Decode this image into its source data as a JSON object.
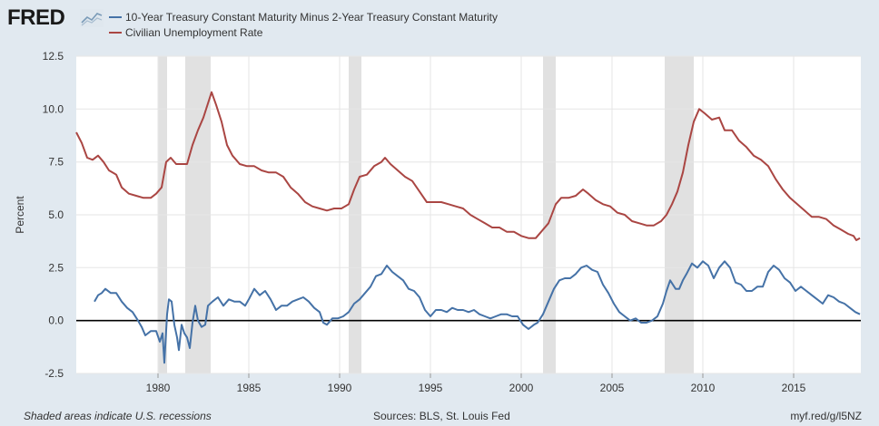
{
  "logo": {
    "text": "FRED"
  },
  "footer": {
    "note": "Shaded areas indicate U.S. recessions",
    "sources": "Sources: BLS, St. Louis Fed",
    "link": "myf.red/g/l5NZ"
  },
  "colors": {
    "background": "#e1e9f0",
    "plot_bg": "#ffffff",
    "spread": "#4572a7",
    "unemployment": "#aa4643",
    "recession": "#e1e1e1"
  },
  "chart_data": {
    "type": "line",
    "title": "",
    "xlabel": "",
    "ylabel": "Percent",
    "xlim": [
      1975.5,
      2018.7
    ],
    "ylim": [
      -2.5,
      12.5
    ],
    "yticks": [
      -2.5,
      0.0,
      2.5,
      5.0,
      7.5,
      10.0,
      12.5
    ],
    "ytick_labels": [
      "-2.5",
      "0.0",
      "2.5",
      "5.0",
      "7.5",
      "10.0",
      "12.5"
    ],
    "xticks": [
      1980,
      1985,
      1990,
      1995,
      2000,
      2005,
      2010,
      2015
    ],
    "xtick_labels": [
      "1980",
      "1985",
      "1990",
      "1995",
      "2000",
      "2005",
      "2010",
      "2015"
    ],
    "grid": true,
    "legend_position": "top-left",
    "recessions": [
      [
        1980.0,
        1980.5
      ],
      [
        1981.5,
        1982.9
      ],
      [
        1990.5,
        1991.2
      ],
      [
        2001.2,
        2001.9
      ],
      [
        2007.9,
        2009.5
      ]
    ],
    "series": [
      {
        "name": "10-Year Treasury Constant Maturity Minus 2-Year Treasury Constant Maturity",
        "color": "#4572a7",
        "points": [
          [
            1976.5,
            0.9
          ],
          [
            1976.7,
            1.2
          ],
          [
            1976.9,
            1.3
          ],
          [
            1977.1,
            1.5
          ],
          [
            1977.4,
            1.3
          ],
          [
            1977.7,
            1.3
          ],
          [
            1978.0,
            0.9
          ],
          [
            1978.3,
            0.6
          ],
          [
            1978.6,
            0.4
          ],
          [
            1978.9,
            0.0
          ],
          [
            1979.1,
            -0.3
          ],
          [
            1979.3,
            -0.7
          ],
          [
            1979.6,
            -0.5
          ],
          [
            1979.9,
            -0.5
          ],
          [
            1980.1,
            -1.0
          ],
          [
            1980.25,
            -0.6
          ],
          [
            1980.35,
            -2.0
          ],
          [
            1980.5,
            0.3
          ],
          [
            1980.6,
            1.0
          ],
          [
            1980.75,
            0.9
          ],
          [
            1980.9,
            -0.2
          ],
          [
            1981.05,
            -0.8
          ],
          [
            1981.15,
            -1.4
          ],
          [
            1981.3,
            -0.2
          ],
          [
            1981.45,
            -0.6
          ],
          [
            1981.6,
            -0.8
          ],
          [
            1981.75,
            -1.3
          ],
          [
            1981.9,
            -0.1
          ],
          [
            1982.05,
            0.7
          ],
          [
            1982.2,
            0.0
          ],
          [
            1982.4,
            -0.3
          ],
          [
            1982.6,
            -0.2
          ],
          [
            1982.75,
            0.7
          ],
          [
            1983.0,
            0.9
          ],
          [
            1983.3,
            1.1
          ],
          [
            1983.6,
            0.7
          ],
          [
            1983.9,
            1.0
          ],
          [
            1984.2,
            0.9
          ],
          [
            1984.5,
            0.9
          ],
          [
            1984.8,
            0.7
          ],
          [
            1985.0,
            1.0
          ],
          [
            1985.3,
            1.5
          ],
          [
            1985.6,
            1.2
          ],
          [
            1985.9,
            1.4
          ],
          [
            1986.2,
            1.0
          ],
          [
            1986.5,
            0.5
          ],
          [
            1986.8,
            0.7
          ],
          [
            1987.1,
            0.7
          ],
          [
            1987.4,
            0.9
          ],
          [
            1987.7,
            1.0
          ],
          [
            1988.0,
            1.1
          ],
          [
            1988.3,
            0.9
          ],
          [
            1988.6,
            0.6
          ],
          [
            1988.9,
            0.4
          ],
          [
            1989.1,
            -0.1
          ],
          [
            1989.3,
            -0.2
          ],
          [
            1989.6,
            0.1
          ],
          [
            1989.9,
            0.1
          ],
          [
            1990.2,
            0.2
          ],
          [
            1990.5,
            0.4
          ],
          [
            1990.8,
            0.8
          ],
          [
            1991.1,
            1.0
          ],
          [
            1991.4,
            1.3
          ],
          [
            1991.7,
            1.6
          ],
          [
            1992.0,
            2.1
          ],
          [
            1992.3,
            2.2
          ],
          [
            1992.6,
            2.6
          ],
          [
            1992.9,
            2.3
          ],
          [
            1993.2,
            2.1
          ],
          [
            1993.5,
            1.9
          ],
          [
            1993.8,
            1.5
          ],
          [
            1994.1,
            1.4
          ],
          [
            1994.4,
            1.1
          ],
          [
            1994.7,
            0.5
          ],
          [
            1995.0,
            0.2
          ],
          [
            1995.3,
            0.5
          ],
          [
            1995.6,
            0.5
          ],
          [
            1995.9,
            0.4
          ],
          [
            1996.2,
            0.6
          ],
          [
            1996.5,
            0.5
          ],
          [
            1996.8,
            0.5
          ],
          [
            1997.1,
            0.4
          ],
          [
            1997.4,
            0.5
          ],
          [
            1997.7,
            0.3
          ],
          [
            1998.0,
            0.2
          ],
          [
            1998.3,
            0.1
          ],
          [
            1998.6,
            0.2
          ],
          [
            1998.9,
            0.3
          ],
          [
            1999.2,
            0.3
          ],
          [
            1999.5,
            0.2
          ],
          [
            1999.8,
            0.2
          ],
          [
            2000.1,
            -0.2
          ],
          [
            2000.4,
            -0.4
          ],
          [
            2000.7,
            -0.2
          ],
          [
            2000.9,
            -0.1
          ],
          [
            2001.2,
            0.3
          ],
          [
            2001.5,
            0.9
          ],
          [
            2001.8,
            1.5
          ],
          [
            2002.1,
            1.9
          ],
          [
            2002.4,
            2.0
          ],
          [
            2002.7,
            2.0
          ],
          [
            2003.0,
            2.2
          ],
          [
            2003.3,
            2.5
          ],
          [
            2003.6,
            2.6
          ],
          [
            2003.9,
            2.4
          ],
          [
            2004.2,
            2.3
          ],
          [
            2004.5,
            1.7
          ],
          [
            2004.8,
            1.3
          ],
          [
            2005.1,
            0.8
          ],
          [
            2005.4,
            0.4
          ],
          [
            2005.7,
            0.2
          ],
          [
            2006.0,
            0.0
          ],
          [
            2006.3,
            0.1
          ],
          [
            2006.6,
            -0.1
          ],
          [
            2006.9,
            -0.1
          ],
          [
            2007.2,
            0.0
          ],
          [
            2007.5,
            0.2
          ],
          [
            2007.8,
            0.8
          ],
          [
            2008.0,
            1.4
          ],
          [
            2008.2,
            1.9
          ],
          [
            2008.5,
            1.5
          ],
          [
            2008.7,
            1.5
          ],
          [
            2008.9,
            1.9
          ],
          [
            2009.1,
            2.2
          ],
          [
            2009.4,
            2.7
          ],
          [
            2009.7,
            2.5
          ],
          [
            2010.0,
            2.8
          ],
          [
            2010.3,
            2.6
          ],
          [
            2010.6,
            2.0
          ],
          [
            2010.9,
            2.5
          ],
          [
            2011.2,
            2.8
          ],
          [
            2011.5,
            2.5
          ],
          [
            2011.8,
            1.8
          ],
          [
            2012.1,
            1.7
          ],
          [
            2012.4,
            1.4
          ],
          [
            2012.7,
            1.4
          ],
          [
            2013.0,
            1.6
          ],
          [
            2013.3,
            1.6
          ],
          [
            2013.6,
            2.3
          ],
          [
            2013.9,
            2.6
          ],
          [
            2014.2,
            2.4
          ],
          [
            2014.5,
            2.0
          ],
          [
            2014.8,
            1.8
          ],
          [
            2015.1,
            1.4
          ],
          [
            2015.4,
            1.6
          ],
          [
            2015.7,
            1.4
          ],
          [
            2016.0,
            1.2
          ],
          [
            2016.3,
            1.0
          ],
          [
            2016.6,
            0.8
          ],
          [
            2016.9,
            1.2
          ],
          [
            2017.2,
            1.1
          ],
          [
            2017.5,
            0.9
          ],
          [
            2017.8,
            0.8
          ],
          [
            2018.1,
            0.6
          ],
          [
            2018.4,
            0.4
          ],
          [
            2018.65,
            0.3
          ]
        ]
      },
      {
        "name": "Civilian Unemployment Rate",
        "color": "#aa4643",
        "points": [
          [
            1975.5,
            8.9
          ],
          [
            1975.8,
            8.4
          ],
          [
            1976.1,
            7.7
          ],
          [
            1976.4,
            7.6
          ],
          [
            1976.7,
            7.8
          ],
          [
            1977.0,
            7.5
          ],
          [
            1977.3,
            7.1
          ],
          [
            1977.7,
            6.9
          ],
          [
            1978.0,
            6.3
          ],
          [
            1978.4,
            6.0
          ],
          [
            1978.8,
            5.9
          ],
          [
            1979.2,
            5.8
          ],
          [
            1979.6,
            5.8
          ],
          [
            1979.9,
            6.0
          ],
          [
            1980.2,
            6.3
          ],
          [
            1980.45,
            7.5
          ],
          [
            1980.7,
            7.7
          ],
          [
            1981.0,
            7.4
          ],
          [
            1981.3,
            7.4
          ],
          [
            1981.6,
            7.4
          ],
          [
            1981.9,
            8.3
          ],
          [
            1982.2,
            9.0
          ],
          [
            1982.5,
            9.6
          ],
          [
            1982.8,
            10.4
          ],
          [
            1982.95,
            10.8
          ],
          [
            1983.2,
            10.2
          ],
          [
            1983.5,
            9.4
          ],
          [
            1983.8,
            8.3
          ],
          [
            1984.1,
            7.8
          ],
          [
            1984.5,
            7.4
          ],
          [
            1984.9,
            7.3
          ],
          [
            1985.3,
            7.3
          ],
          [
            1985.7,
            7.1
          ],
          [
            1986.1,
            7.0
          ],
          [
            1986.5,
            7.0
          ],
          [
            1986.9,
            6.8
          ],
          [
            1987.3,
            6.3
          ],
          [
            1987.7,
            6.0
          ],
          [
            1988.1,
            5.6
          ],
          [
            1988.5,
            5.4
          ],
          [
            1988.9,
            5.3
          ],
          [
            1989.3,
            5.2
          ],
          [
            1989.7,
            5.3
          ],
          [
            1990.1,
            5.3
          ],
          [
            1990.5,
            5.5
          ],
          [
            1990.8,
            6.2
          ],
          [
            1991.1,
            6.8
          ],
          [
            1991.5,
            6.9
          ],
          [
            1991.9,
            7.3
          ],
          [
            1992.3,
            7.5
          ],
          [
            1992.5,
            7.7
          ],
          [
            1992.8,
            7.4
          ],
          [
            1993.2,
            7.1
          ],
          [
            1993.6,
            6.8
          ],
          [
            1994.0,
            6.6
          ],
          [
            1994.4,
            6.1
          ],
          [
            1994.8,
            5.6
          ],
          [
            1995.2,
            5.6
          ],
          [
            1995.6,
            5.6
          ],
          [
            1996.0,
            5.5
          ],
          [
            1996.4,
            5.4
          ],
          [
            1996.8,
            5.3
          ],
          [
            1997.2,
            5.0
          ],
          [
            1997.6,
            4.8
          ],
          [
            1998.0,
            4.6
          ],
          [
            1998.4,
            4.4
          ],
          [
            1998.8,
            4.4
          ],
          [
            1999.2,
            4.2
          ],
          [
            1999.6,
            4.2
          ],
          [
            2000.0,
            4.0
          ],
          [
            2000.4,
            3.9
          ],
          [
            2000.8,
            3.9
          ],
          [
            2001.1,
            4.2
          ],
          [
            2001.5,
            4.6
          ],
          [
            2001.9,
            5.5
          ],
          [
            2002.2,
            5.8
          ],
          [
            2002.6,
            5.8
          ],
          [
            2003.0,
            5.9
          ],
          [
            2003.4,
            6.2
          ],
          [
            2003.7,
            6.0
          ],
          [
            2004.1,
            5.7
          ],
          [
            2004.5,
            5.5
          ],
          [
            2004.9,
            5.4
          ],
          [
            2005.3,
            5.1
          ],
          [
            2005.7,
            5.0
          ],
          [
            2006.1,
            4.7
          ],
          [
            2006.5,
            4.6
          ],
          [
            2006.9,
            4.5
          ],
          [
            2007.3,
            4.5
          ],
          [
            2007.7,
            4.7
          ],
          [
            2008.0,
            5.0
          ],
          [
            2008.3,
            5.5
          ],
          [
            2008.6,
            6.1
          ],
          [
            2008.9,
            7.0
          ],
          [
            2009.2,
            8.3
          ],
          [
            2009.5,
            9.4
          ],
          [
            2009.8,
            10.0
          ],
          [
            2010.1,
            9.8
          ],
          [
            2010.5,
            9.5
          ],
          [
            2010.9,
            9.6
          ],
          [
            2011.2,
            9.0
          ],
          [
            2011.6,
            9.0
          ],
          [
            2012.0,
            8.5
          ],
          [
            2012.4,
            8.2
          ],
          [
            2012.8,
            7.8
          ],
          [
            2013.2,
            7.6
          ],
          [
            2013.6,
            7.3
          ],
          [
            2014.0,
            6.7
          ],
          [
            2014.4,
            6.2
          ],
          [
            2014.8,
            5.8
          ],
          [
            2015.2,
            5.5
          ],
          [
            2015.6,
            5.2
          ],
          [
            2016.0,
            4.9
          ],
          [
            2016.4,
            4.9
          ],
          [
            2016.8,
            4.8
          ],
          [
            2017.2,
            4.5
          ],
          [
            2017.6,
            4.3
          ],
          [
            2018.0,
            4.1
          ],
          [
            2018.3,
            4.0
          ],
          [
            2018.45,
            3.8
          ],
          [
            2018.65,
            3.9
          ]
        ]
      }
    ]
  }
}
